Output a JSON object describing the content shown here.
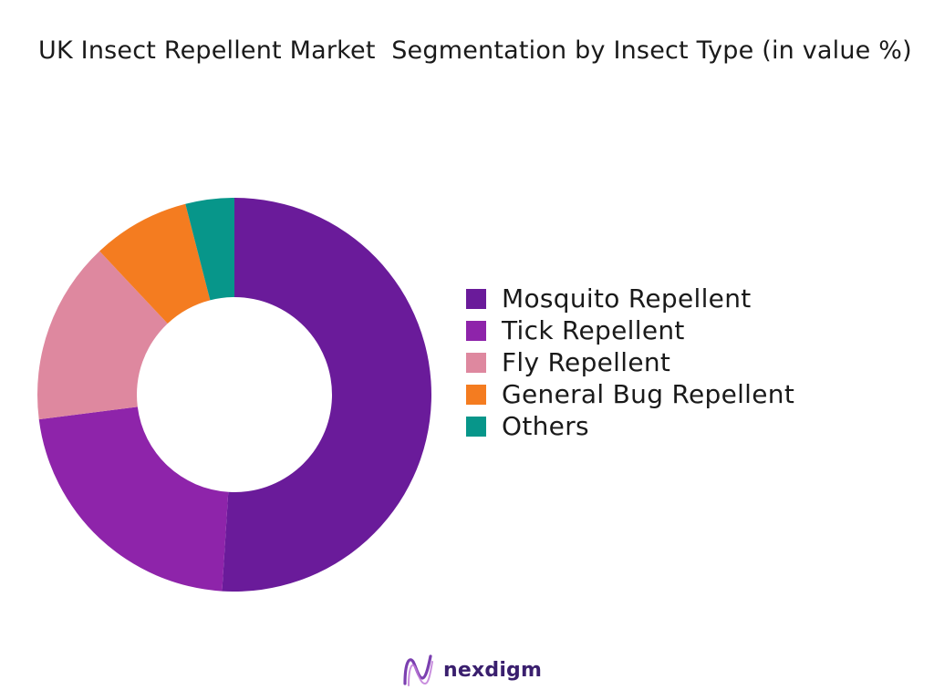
{
  "title": "UK Insect Repellent Market  Segmentation by Insect Type (in value %)",
  "brand": {
    "name": "nexdigm",
    "logo_icon": "nexdigm-wave-logo-icon"
  },
  "chart_data": {
    "type": "pie",
    "variant": "donut",
    "title": "UK Insect Repellent Market  Segmentation by Insect Type (in value %)",
    "unit": "%",
    "categories": [
      "Mosquito Repellent",
      "Tick Repellent",
      "Fly Repellent",
      "General Bug Repellent",
      "Others"
    ],
    "values": [
      51,
      22,
      15,
      8,
      4
    ],
    "colors": [
      "#6a1b9a",
      "#8e24aa",
      "#de889f",
      "#f47c20",
      "#07968a"
    ],
    "start_angle": "12 o'clock",
    "direction": "clockwise",
    "legend_position": "right"
  }
}
